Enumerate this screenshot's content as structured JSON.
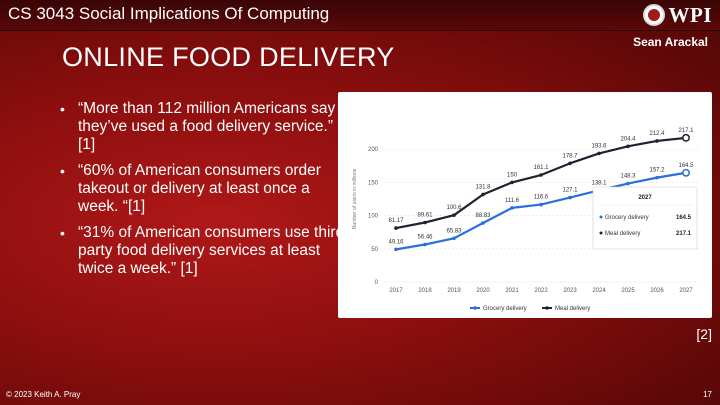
{
  "header": {
    "course_title": "CS 3043 Social Implications Of Computing",
    "logo_text": "WPI"
  },
  "presenter": "Sean Arackal",
  "slide": {
    "title": "ONLINE FOOD DELIVERY",
    "bullets": [
      "“More than 112 million Americans say they’ve used a food delivery service.” [1]",
      "“60% of American consumers order takeout or delivery at least once a week. “[1]",
      "“31% of American consumers use third-party food delivery services at least twice a week.” [1]"
    ],
    "figure_ref": "[2]"
  },
  "footer": {
    "copyright": "© 2023 Keith A. Pray",
    "page_number": "17"
  },
  "chart_data": {
    "type": "line",
    "title": "",
    "xlabel": "",
    "ylabel": "Number of users in millions",
    "x": [
      "2017",
      "2018",
      "2019",
      "2020",
      "2021",
      "2022",
      "2023",
      "2024",
      "2025",
      "2026",
      "2027"
    ],
    "ylim": [
      0,
      250
    ],
    "yticks": [
      0,
      50,
      100,
      150,
      200
    ],
    "series": [
      {
        "name": "Grocery delivery",
        "color": "#2a6fdb",
        "values": [
          49.16,
          56.46,
          65.83,
          88.83,
          111.6,
          116.6,
          127.1,
          138.1,
          148.3,
          157.2,
          164.5
        ],
        "labels": [
          "49.16",
          "56.46",
          "65.83",
          "88.83",
          "111.6",
          "116.6",
          "127.1",
          "138.1",
          "148.3",
          "157.2",
          "164.5"
        ]
      },
      {
        "name": "Meal delivery",
        "color": "#1b2430",
        "values": [
          81.17,
          89.61,
          100.6,
          131.8,
          150,
          161.1,
          178.7,
          193.6,
          204.4,
          212.4,
          217.1
        ],
        "labels": [
          "81.17",
          "89.61",
          "100.6",
          "131.8",
          "150",
          "161.1",
          "178.7",
          "193.6",
          "204.4",
          "212.4",
          "217.1"
        ]
      }
    ],
    "tooltip": {
      "title": "2027",
      "rows": [
        {
          "name": "Grocery delivery",
          "value": "164.5"
        },
        {
          "name": "Meal delivery",
          "value": "217.1"
        }
      ]
    },
    "legend_position": "bottom-center",
    "grid": true
  }
}
